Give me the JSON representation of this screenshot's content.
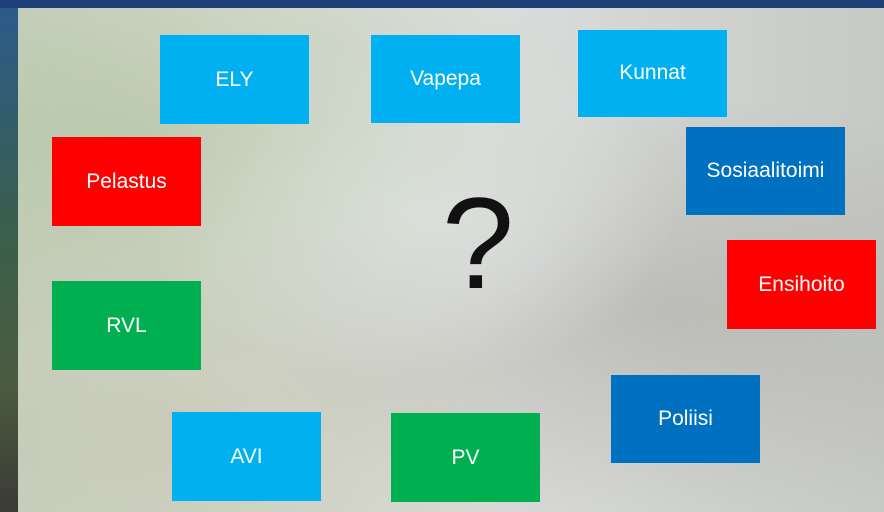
{
  "question_mark": "?",
  "boxes": [
    {
      "label": "ELY"
    },
    {
      "label": "Vapepa"
    },
    {
      "label": "Kunnat"
    },
    {
      "label": "Pelastus"
    },
    {
      "label": "Sosiaalitoimi"
    },
    {
      "label": "Ensihoito"
    },
    {
      "label": "RVL"
    },
    {
      "label": "Poliisi"
    },
    {
      "label": "AVI"
    },
    {
      "label": "PV"
    }
  ]
}
